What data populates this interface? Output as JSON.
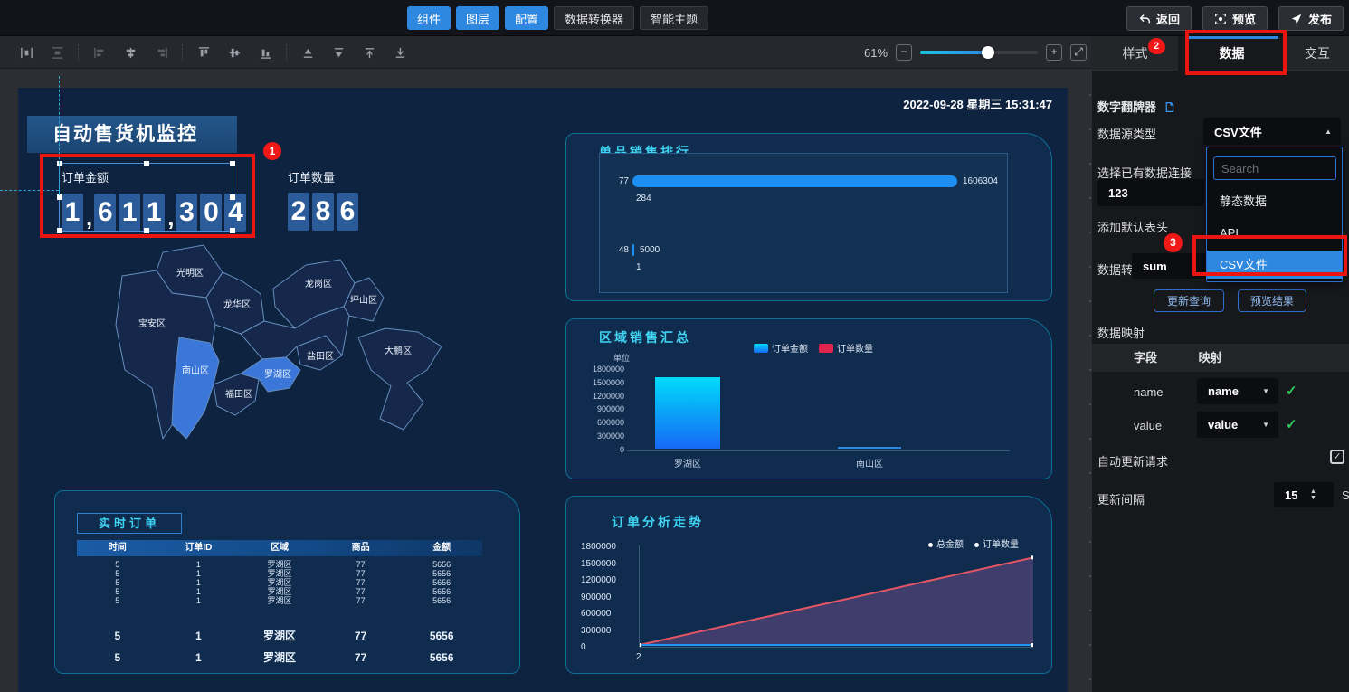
{
  "topbar": {
    "tools": [
      {
        "label": "组件",
        "active": true
      },
      {
        "label": "图层",
        "active": true
      },
      {
        "label": "配置",
        "active": true
      },
      {
        "label": "数据转换器",
        "active": false
      },
      {
        "label": "智能主题",
        "active": false
      }
    ],
    "back_label": "返回",
    "preview_label": "预览",
    "publish_label": "发布"
  },
  "toolbar": {
    "zoom_percent": "61%"
  },
  "canvas": {
    "timestamp": "2022-09-28 星期三 15:31:47",
    "title": "自动售货机监控",
    "kpis": [
      {
        "label": "订单金额",
        "value": "1,611,304"
      },
      {
        "label": "订单数量",
        "value": "286"
      }
    ],
    "map": {
      "base_color": "#16294c",
      "highlight_color": "#3d7ce2",
      "border_color": "#6a93c4",
      "districts": [
        {
          "name": "光明区",
          "highlighted": false
        },
        {
          "name": "宝安区",
          "highlighted": false
        },
        {
          "name": "龙华区",
          "highlighted": false
        },
        {
          "name": "龙岗区",
          "highlighted": false
        },
        {
          "name": "坪山区",
          "highlighted": false
        },
        {
          "name": "盐田区",
          "highlighted": false
        },
        {
          "name": "大鹏区",
          "highlighted": false
        },
        {
          "name": "南山区",
          "highlighted": true
        },
        {
          "name": "福田区",
          "highlighted": false
        },
        {
          "name": "罗湖区",
          "highlighted": true
        }
      ]
    }
  },
  "chart_data": [
    {
      "type": "bar",
      "orientation": "horizontal",
      "title": "单品销售排行",
      "categories": [
        "77",
        "48"
      ],
      "values": [
        1606304,
        5000
      ],
      "value_labels": [
        "1606304",
        "5000"
      ],
      "sub_labels": [
        "284",
        "1"
      ],
      "xlim": [
        0,
        1700000
      ],
      "bar_color": "#1e8ff2"
    },
    {
      "type": "bar",
      "title": "区域销售汇总",
      "unit_label": "单位",
      "categories": [
        "罗湖区",
        "南山区"
      ],
      "ylim": [
        0,
        1800000
      ],
      "yticks": [
        "0",
        "300000",
        "600000",
        "900000",
        "1200000",
        "1500000",
        "1800000"
      ],
      "legend_position": "top",
      "series": [
        {
          "name": "订单金额",
          "color_top": "#00dcfa",
          "color_bottom": "#1668f5",
          "values": [
            1606304,
            5000
          ]
        },
        {
          "name": "订单数量",
          "color": "#e0244e",
          "values": [
            284,
            1
          ]
        }
      ]
    },
    {
      "type": "line",
      "title": "订单分析走势",
      "x_ticks": [
        "2",
        ""
      ],
      "ylim": [
        0,
        1800000
      ],
      "yticks": [
        "0",
        "300000",
        "600000",
        "900000",
        "1200000",
        "1500000",
        "1800000"
      ],
      "legend_position": "top-right",
      "area_fill": "#4c4276",
      "series": [
        {
          "name": "总金额",
          "color": "#e25565",
          "values": [
            0,
            1611304
          ]
        },
        {
          "name": "订单数量",
          "color": "#2196f3",
          "values": [
            0,
            286
          ]
        }
      ]
    },
    {
      "type": "table",
      "title": "实时订单",
      "headers": [
        "时间",
        "订单ID",
        "区域",
        "商品",
        "金额"
      ],
      "rows_small": [
        [
          "5",
          "1",
          "罗湖区",
          "77",
          "5656"
        ],
        [
          "5",
          "1",
          "罗湖区",
          "77",
          "5656"
        ],
        [
          "5",
          "1",
          "罗湖区",
          "77",
          "5656"
        ],
        [
          "5",
          "1",
          "罗湖区",
          "77",
          "5656"
        ],
        [
          "5",
          "1",
          "罗湖区",
          "77",
          "5656"
        ]
      ],
      "rows_large": [
        [
          "5",
          "1",
          "罗湖区",
          "77",
          "5656"
        ],
        [
          "5",
          "1",
          "罗湖区",
          "77",
          "5656"
        ]
      ]
    }
  ],
  "right_panel": {
    "tabs": [
      {
        "label": "样式",
        "badge": "2",
        "active": false
      },
      {
        "label": "数据",
        "badge": "",
        "active": true
      },
      {
        "label": "交互",
        "badge": "",
        "active": false
      }
    ],
    "component_title": "数字翻牌器",
    "datasource_label": "数据源类型",
    "datasource_value": "CSV文件",
    "connection_label": "选择已有数据连接",
    "connection_value": "123",
    "add_header_label": "添加默认表头",
    "transformer_label": "数据转换器",
    "transformer_value": "sum",
    "dropdown": {
      "search_placeholder": "Search",
      "options": [
        {
          "label": "静态数据",
          "selected": false
        },
        {
          "label": "API",
          "selected": false
        },
        {
          "label": "CSV文件",
          "selected": true
        }
      ]
    },
    "update_query_label": "更新查询",
    "preview_result_label": "预览结果",
    "mapping_title": "数据映射",
    "mapping_headers": [
      "字段",
      "映射"
    ],
    "mapping_rows": [
      {
        "field": "name",
        "value": "name"
      },
      {
        "field": "value",
        "value": "value"
      }
    ],
    "auto_update_label": "自动更新请求",
    "auto_update_checked": true,
    "interval_label": "更新间隔",
    "interval_value": "15",
    "interval_unit": "S"
  },
  "annotations": {
    "step1": "1",
    "step2": "2",
    "step3": "3"
  },
  "colors": {
    "accent_blue": "#2f88e0",
    "panel_cyan": "#3fd4f2",
    "annotation_red": "#e9150e",
    "canvas_navy": "#0d2340"
  }
}
